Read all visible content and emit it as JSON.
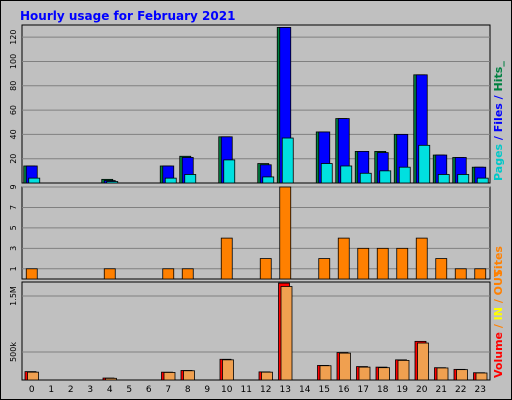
{
  "chart_data": {
    "type": "bar",
    "title": "Hourly usage for February 2021",
    "categories": [
      "0",
      "1",
      "2",
      "3",
      "4",
      "5",
      "6",
      "7",
      "8",
      "9",
      "10",
      "11",
      "12",
      "13",
      "14",
      "15",
      "16",
      "17",
      "18",
      "19",
      "20",
      "21",
      "22",
      "23"
    ],
    "panels": [
      {
        "id": "hits",
        "ylim": [
          0,
          130
        ],
        "yticks": [
          "20",
          "40",
          "60",
          "80",
          "100",
          "120"
        ],
        "ytick_values": [
          20,
          40,
          60,
          80,
          100,
          120
        ],
        "legend": [
          {
            "text": "Pages",
            "color": "#00c8c8"
          },
          {
            "text": " / ",
            "color": "#0000ff"
          },
          {
            "text": "Files",
            "color": "#0000ff"
          },
          {
            "text": " / ",
            "color": "#0000ff"
          },
          {
            "text": "Hits",
            "color": "#008040"
          },
          {
            "text": "_",
            "color": "#008040"
          }
        ],
        "series": [
          {
            "name": "Hits",
            "color": "#008040",
            "values": [
              14,
              0,
              0,
              0,
              3,
              0,
              0,
              14,
              22,
              0,
              38,
              0,
              16,
              128,
              0,
              42,
              53,
              26,
              26,
              40,
              89,
              23,
              21,
              13
            ]
          },
          {
            "name": "Files",
            "color": "#0000ff",
            "values": [
              14,
              0,
              0,
              0,
              2,
              0,
              0,
              14,
              21,
              0,
              38,
              0,
              15,
              128,
              0,
              42,
              53,
              26,
              25,
              40,
              89,
              23,
              21,
              13
            ]
          },
          {
            "name": "Pages",
            "color": "#00e0e0",
            "values": [
              4,
              0,
              0,
              0,
              1,
              0,
              0,
              4,
              7,
              0,
              19,
              0,
              5,
              37,
              0,
              16,
              14,
              8,
              10,
              13,
              31,
              7,
              7,
              4
            ]
          }
        ]
      },
      {
        "id": "sites",
        "ylim": [
          0,
          9
        ],
        "yticks": [
          "1",
          "3",
          "5",
          "7",
          "9"
        ],
        "ytick_values": [
          1,
          3,
          5,
          7,
          9
        ],
        "legend": [
          {
            "text": "Sites",
            "color": "#ff8000"
          }
        ],
        "series": [
          {
            "name": "Sites",
            "color": "#ff8000",
            "values": [
              1,
              0,
              0,
              0,
              1,
              0,
              0,
              1,
              1,
              0,
              4,
              0,
              2,
              9,
              0,
              2,
              4,
              3,
              3,
              3,
              4,
              2,
              1,
              1
            ]
          }
        ]
      },
      {
        "id": "volume",
        "ylim": [
          0,
          1750000
        ],
        "yticks": [
          "500k",
          "1.5M"
        ],
        "ytick_values": [
          500000,
          1500000
        ],
        "legend": [
          {
            "text": "Volume",
            "color": "#ff0000"
          },
          {
            "text": " / ",
            "color": "#ff8000"
          },
          {
            "text": "IN",
            "color": "#ffff00"
          },
          {
            "text": " / ",
            "color": "#ff8000"
          },
          {
            "text": "OUT",
            "color": "#ff8000"
          }
        ],
        "series": [
          {
            "name": "Volume",
            "color": "#ff0000",
            "values": [
              150000,
              0,
              0,
              0,
              35000,
              0,
              0,
              140000,
              170000,
              0,
              370000,
              0,
              145000,
              1730000,
              0,
              260000,
              490000,
              240000,
              230000,
              360000,
              690000,
              220000,
              190000,
              130000
            ]
          },
          {
            "name": "OUT",
            "color": "#f0a050",
            "values": [
              140000,
              0,
              0,
              0,
              30000,
              0,
              0,
              135000,
              165000,
              0,
              360000,
              0,
              140000,
              1670000,
              0,
              255000,
              480000,
              230000,
              220000,
              350000,
              660000,
              215000,
              185000,
              125000
            ]
          }
        ]
      }
    ],
    "colors": {
      "background": "#c0c0c0",
      "plot_background": "#c0c0c0",
      "grid": "#808080",
      "axis": "#000000",
      "bar_outline": "#000000"
    }
  }
}
